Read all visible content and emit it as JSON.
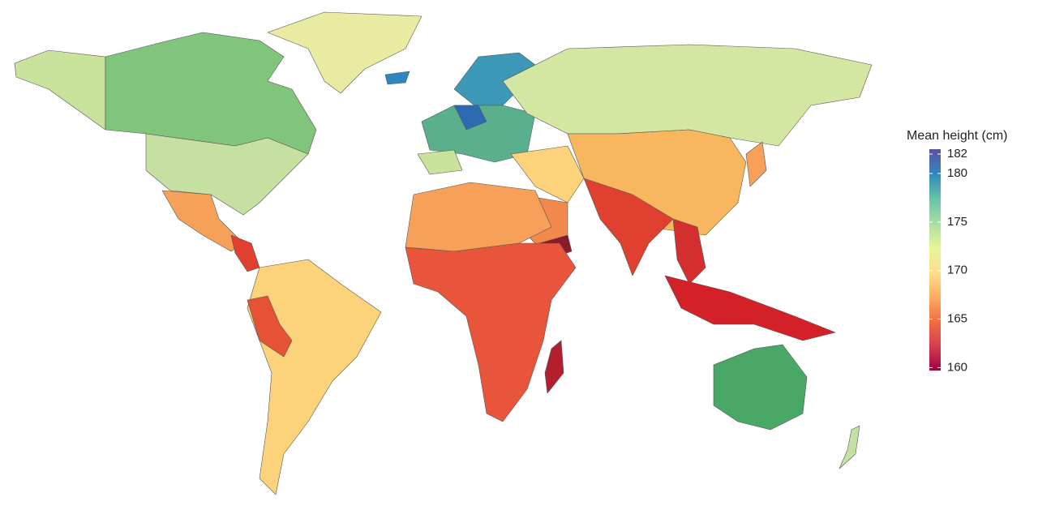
{
  "legend": {
    "title": "Mean height (cm)",
    "ticks": [
      182,
      180,
      175,
      170,
      165,
      160
    ],
    "range": [
      159.7,
      182.5
    ],
    "colors": [
      "#9e0142",
      "#d53e4f",
      "#f46d43",
      "#fdae61",
      "#fee08b",
      "#e6f598",
      "#abdda4",
      "#66c2a5",
      "#3288bd",
      "#5e4fa2"
    ]
  }
}
